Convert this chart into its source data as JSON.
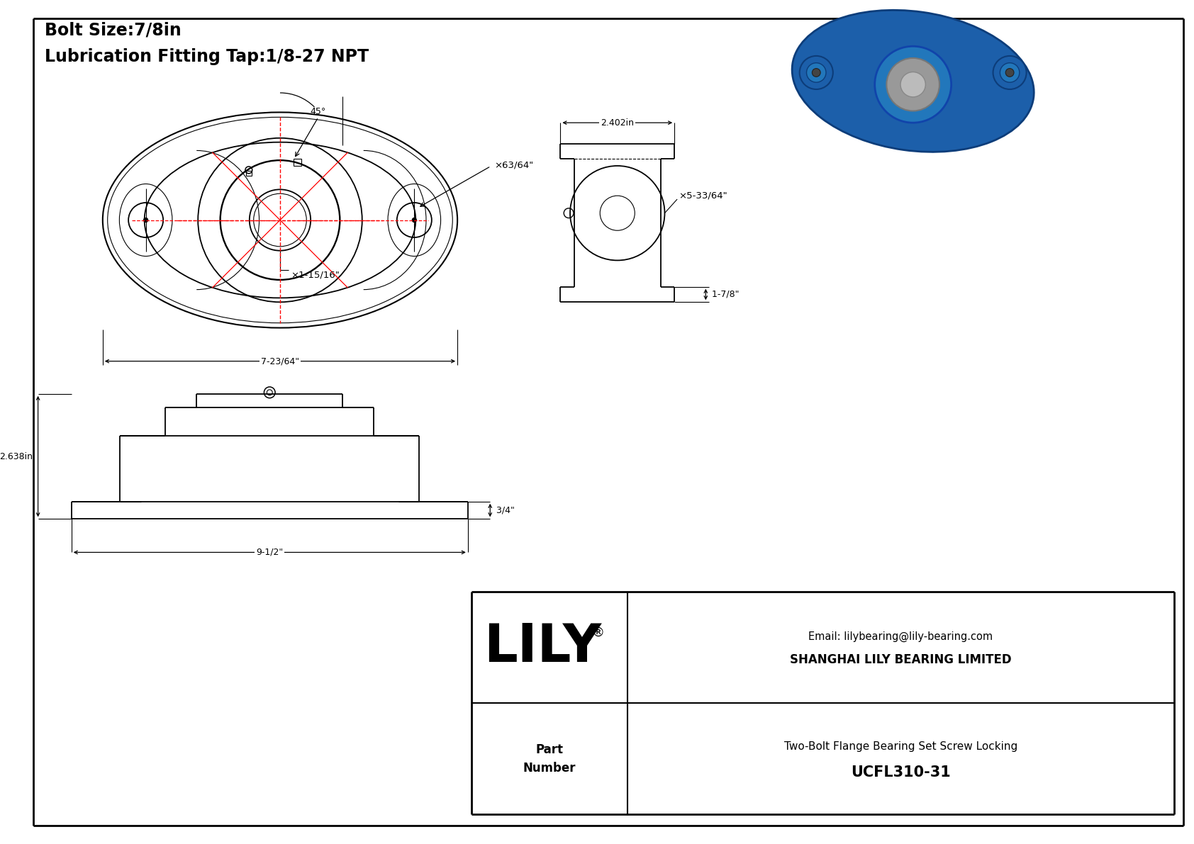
{
  "title_line1": "Bolt Size:7/8in",
  "title_line2": "Lubrication Fitting Tap:1/8-27 NPT",
  "company": "SHANGHAI LILY BEARING LIMITED",
  "email": "Email: lilybearing@lily-bearing.com",
  "part_number_label": "Part\nNumber",
  "part_number": "UCFL310-31",
  "part_description": "Two-Bolt Flange Bearing Set Screw Locking",
  "lily_text": "LILY",
  "registered": "®",
  "dim_bolt_hole": "×63/64\"",
  "dim_bore": "×1-15/16\"",
  "dim_width": "7-23/64\"",
  "dim_angle": "45°",
  "dim_side_width": "2.402in",
  "dim_side_od": "×5-33/64\"",
  "dim_side_depth": "1-7/8\"",
  "dim_front_height": "2.638in",
  "dim_front_width": "9-1/2\"",
  "dim_front_top": "3/4\"",
  "bg_color": "#ffffff",
  "line_color": "#000000",
  "red_color": "#ff0000",
  "border_lw": 2.0,
  "drawing_lw": 1.3,
  "dim_lw": 0.9,
  "thin_lw": 0.8
}
